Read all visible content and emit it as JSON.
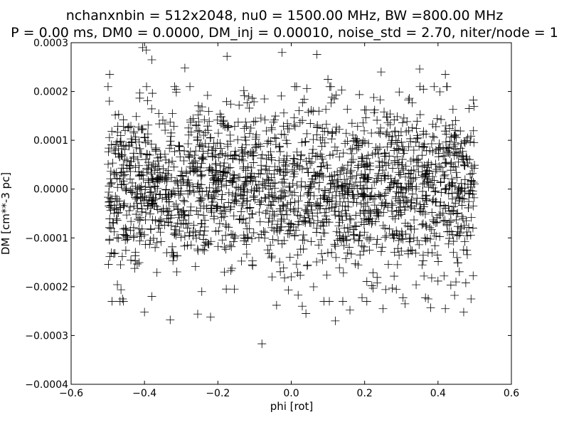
{
  "chart_data": {
    "type": "scatter",
    "title_lines": [
      "nchanxnbin = 512x2048, nu0 = 1500.00 MHz, BW =800.00 MHz",
      "P = 0.00 ms, DM0 = 0.0000, DM_inj = 0.00010, noise_std = 2.70, niter/node = 1"
    ],
    "xlabel": "phi [rot]",
    "ylabel": "DM [cm**-3 pc]",
    "xlim": [
      -0.6,
      0.6
    ],
    "ylim": [
      -0.0004,
      0.0003
    ],
    "x_ticks": [
      -0.6,
      -0.4,
      -0.2,
      0.0,
      0.2,
      0.4,
      0.6
    ],
    "x_tick_labels": [
      "−0.6",
      "−0.4",
      "−0.2",
      "0.0",
      "0.2",
      "0.4",
      "0.6"
    ],
    "y_ticks": [
      -0.0004,
      -0.0003,
      -0.0002,
      -0.0001,
      0.0,
      0.0001,
      0.0002,
      0.0003
    ],
    "y_tick_labels": [
      "−0.0004",
      "−0.0003",
      "−0.0002",
      "−0.0001",
      "0.0000",
      "0.0001",
      "0.0002",
      "0.0003"
    ],
    "grid": false,
    "marker": "+",
    "marker_color": "#000000",
    "points_summary": {
      "x_range": [
        -0.5,
        0.5
      ],
      "y_mean": 0.0,
      "y_std": 0.0001,
      "count": 2048
    },
    "points": [
      [
        -0.405,
        0.00029
      ],
      [
        -0.395,
        0.000285
      ],
      [
        -0.38,
        0.000265
      ],
      [
        -0.175,
        0.000272
      ],
      [
        -0.025,
        0.00028
      ],
      [
        0.07,
        0.000276
      ],
      [
        -0.495,
        0.000235
      ],
      [
        -0.29,
        0.000248
      ],
      [
        0.35,
        0.000246
      ],
      [
        0.245,
        0.00024
      ],
      [
        0.42,
        0.000235
      ],
      [
        0.1,
        0.000225
      ],
      [
        -0.08,
        -0.000317
      ],
      [
        -0.33,
        -0.000268
      ],
      [
        -0.4,
        -0.000252
      ],
      [
        0.12,
        -0.00027
      ],
      [
        -0.255,
        -0.000256
      ],
      [
        -0.22,
        -0.000262
      ],
      [
        0.03,
        -0.00024
      ],
      [
        0.04,
        -0.000255
      ],
      [
        0.25,
        -0.000245
      ],
      [
        0.42,
        -0.000245
      ],
      [
        0.47,
        -0.000252
      ],
      [
        0.31,
        -0.000235
      ],
      [
        -0.46,
        -0.000225
      ],
      [
        -0.38,
        -0.00022
      ],
      [
        0.16,
        -0.000248
      ],
      [
        0.49,
        -0.000225
      ],
      [
        -0.04,
        -0.000238
      ],
      [
        0.38,
        -0.000243
      ]
    ]
  }
}
